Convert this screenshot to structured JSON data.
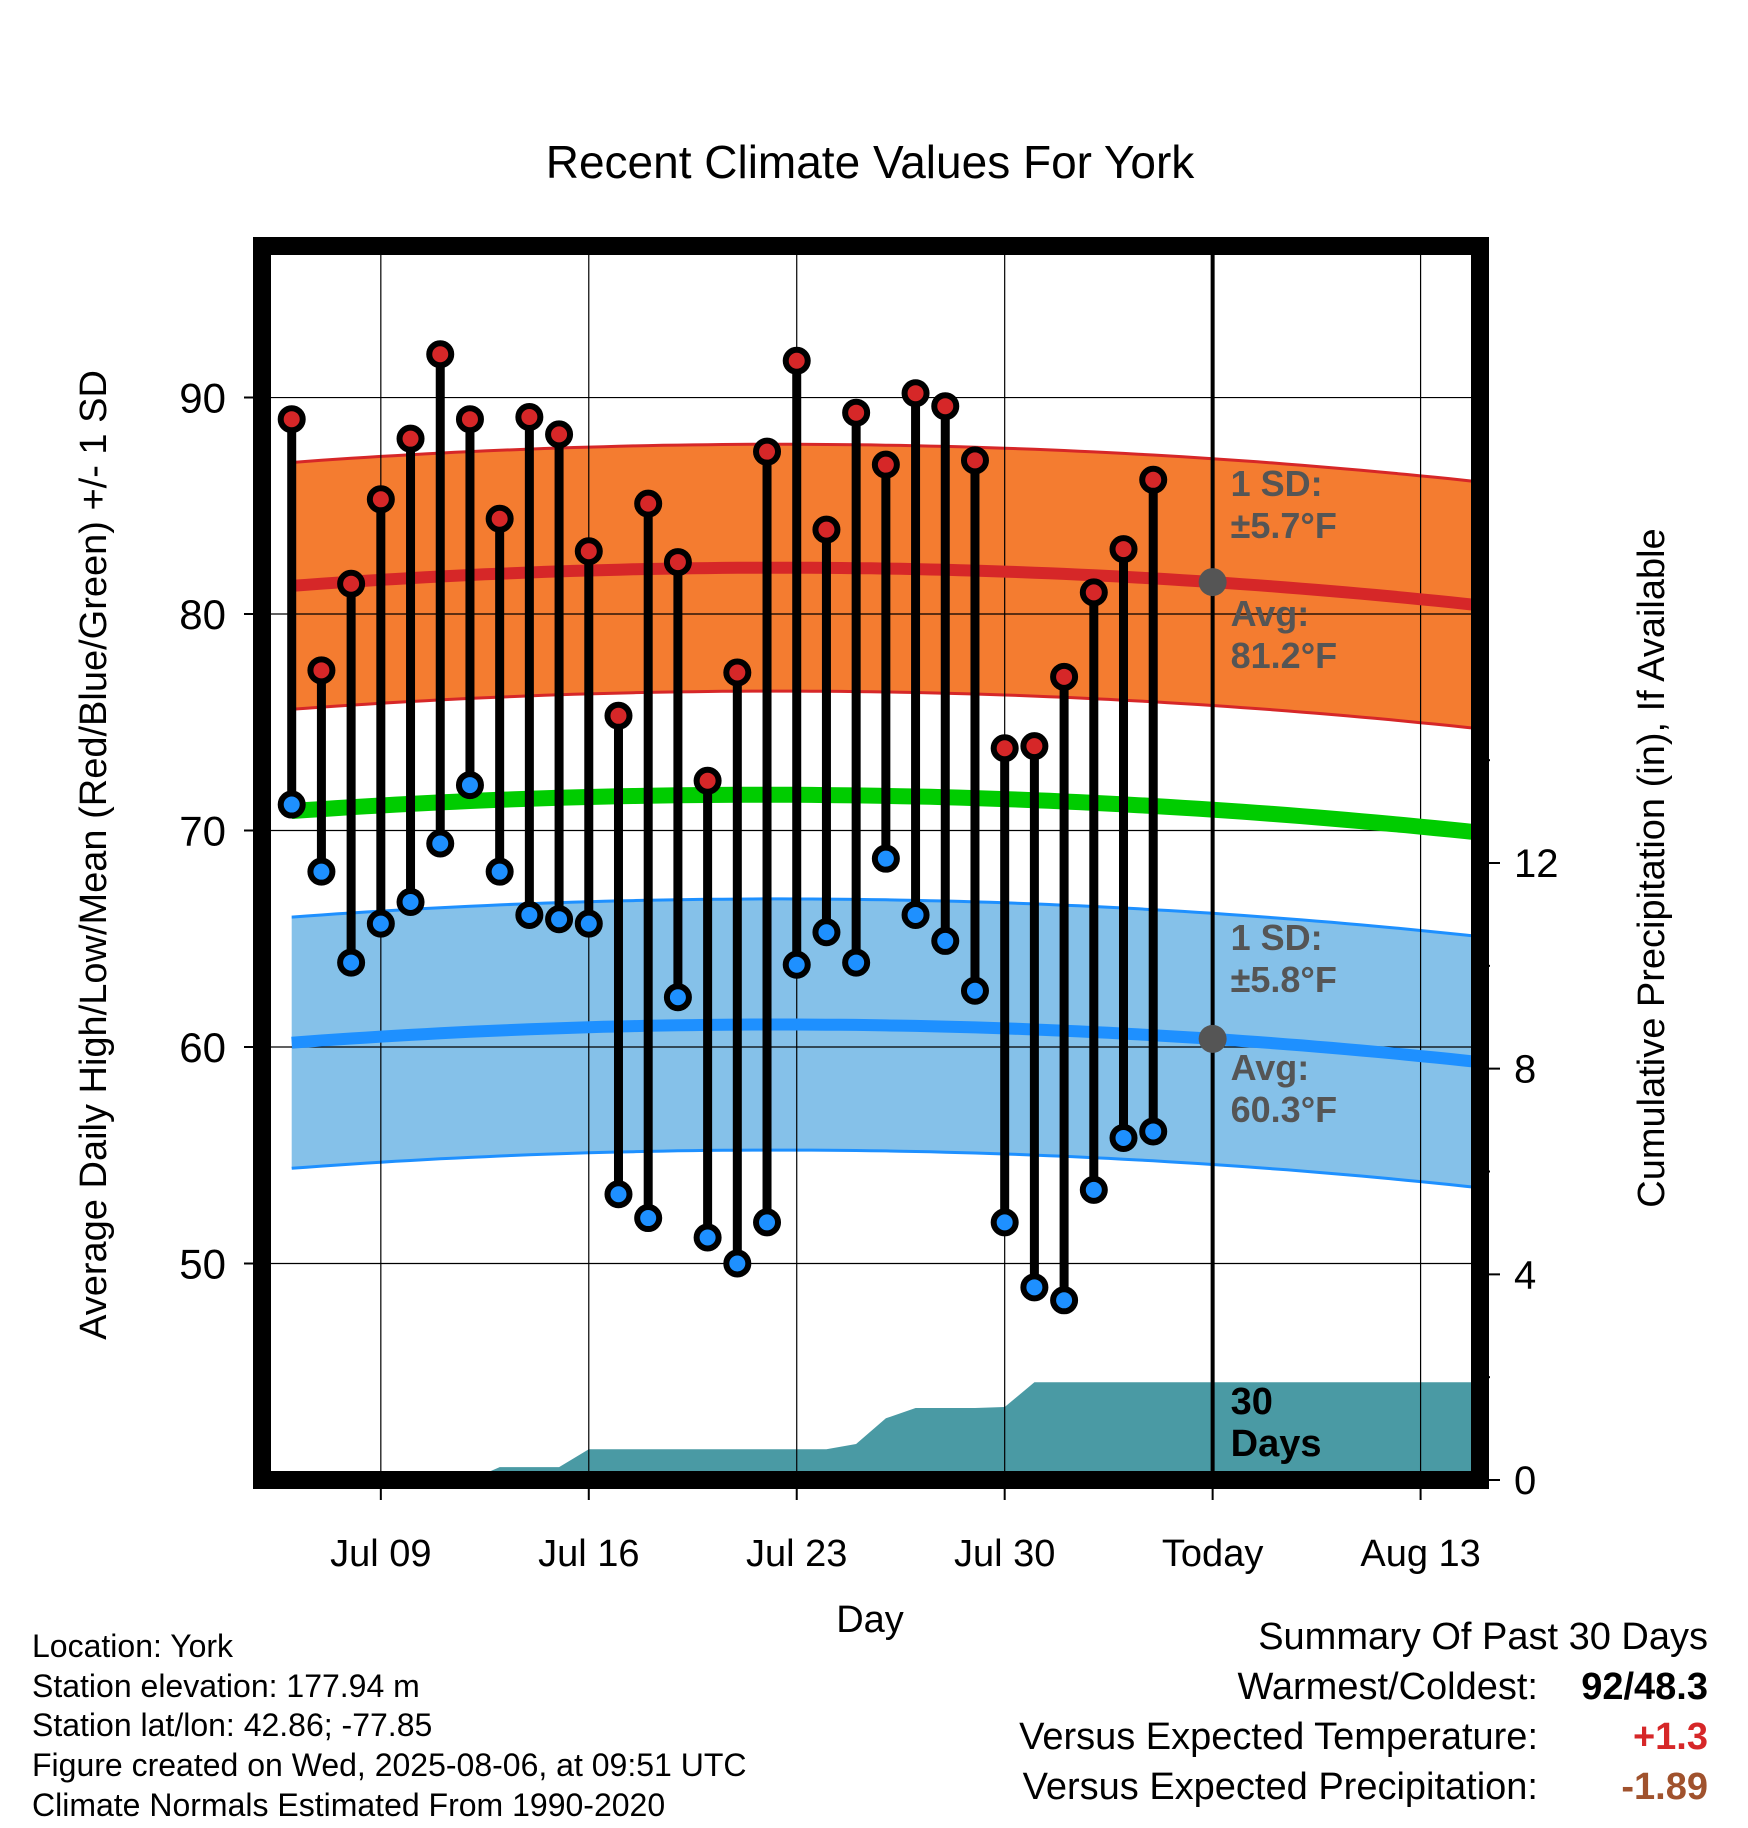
{
  "chart_data": {
    "type": "line",
    "title": "Recent Climate Values For York",
    "xlabel": "Day",
    "ylabel": "Average Daily High/Low/Mean (Red/Blue/Green) +/- 1 SD",
    "y2label": "Cumulative Precipitation (in), If Available",
    "ylim": [
      40,
      97
    ],
    "y2lim": [
      0,
      24
    ],
    "xlim": [
      "2025-07-05",
      "2025-08-15"
    ],
    "x_ticks": [
      {
        "date": "2025-07-09",
        "label": "Jul 09"
      },
      {
        "date": "2025-07-16",
        "label": "Jul 16"
      },
      {
        "date": "2025-07-23",
        "label": "Jul 23"
      },
      {
        "date": "2025-07-30",
        "label": "Jul 30"
      },
      {
        "date": "2025-08-06",
        "label": "Today"
      },
      {
        "date": "2025-08-13",
        "label": "Aug 13"
      }
    ],
    "y_ticks": [
      50,
      60,
      70,
      80,
      90
    ],
    "y2_ticks": [
      0,
      4,
      8,
      12
    ],
    "today": "2025-08-06",
    "grid": true,
    "series": [
      {
        "name": "Daily High",
        "color": "#d62728",
        "dates": [
          "2025-07-06",
          "2025-07-07",
          "2025-07-08",
          "2025-07-09",
          "2025-07-10",
          "2025-07-11",
          "2025-07-12",
          "2025-07-13",
          "2025-07-14",
          "2025-07-15",
          "2025-07-16",
          "2025-07-17",
          "2025-07-18",
          "2025-07-19",
          "2025-07-20",
          "2025-07-21",
          "2025-07-22",
          "2025-07-23",
          "2025-07-24",
          "2025-07-25",
          "2025-07-26",
          "2025-07-27",
          "2025-07-28",
          "2025-07-29",
          "2025-07-30",
          "2025-07-31",
          "2025-08-01",
          "2025-08-02",
          "2025-08-03",
          "2025-08-04",
          "2025-08-05"
        ],
        "values": [
          89.0,
          77.4,
          81.4,
          85.3,
          88.1,
          92.0,
          89.0,
          84.4,
          89.1,
          88.3,
          82.9,
          75.3,
          85.1,
          82.4,
          72.3,
          77.3,
          87.5,
          91.7,
          83.9,
          89.3,
          86.9,
          90.2,
          89.6,
          87.1,
          73.8,
          73.9,
          77.1,
          81.0,
          83.0,
          86.2,
          null
        ]
      },
      {
        "name": "Daily Low",
        "color": "#1e90ff",
        "dates": [
          "2025-07-06",
          "2025-07-07",
          "2025-07-08",
          "2025-07-09",
          "2025-07-10",
          "2025-07-11",
          "2025-07-12",
          "2025-07-13",
          "2025-07-14",
          "2025-07-15",
          "2025-07-16",
          "2025-07-17",
          "2025-07-18",
          "2025-07-19",
          "2025-07-20",
          "2025-07-21",
          "2025-07-22",
          "2025-07-23",
          "2025-07-24",
          "2025-07-25",
          "2025-07-26",
          "2025-07-27",
          "2025-07-28",
          "2025-07-29",
          "2025-07-30",
          "2025-07-31",
          "2025-08-01",
          "2025-08-02",
          "2025-08-03",
          "2025-08-04",
          "2025-08-05"
        ],
        "values": [
          71.2,
          68.1,
          63.9,
          65.7,
          66.7,
          69.4,
          72.1,
          68.1,
          66.1,
          65.9,
          65.7,
          53.2,
          52.1,
          62.3,
          51.2,
          50.0,
          51.9,
          63.8,
          65.3,
          63.9,
          68.7,
          66.1,
          64.9,
          62.6,
          51.9,
          48.9,
          48.3,
          53.4,
          55.8,
          56.1,
          null
        ]
      }
    ],
    "normals": {
      "high": {
        "color": "#d62728",
        "band_color": "#f47c30",
        "start": 81.3,
        "mid": 82.1,
        "end": 80.4
      },
      "low": {
        "color": "#1e90ff",
        "band_color": "#85c1e9",
        "start": 60.2,
        "mid": 61.0,
        "end": 59.3
      },
      "mean": {
        "color": "#00cc00",
        "start": 70.9,
        "mid": 71.6,
        "end": 69.9
      },
      "high_sd": 5.7,
      "low_sd": 5.8
    },
    "precip_cumulative": {
      "color": "#4a9aa4",
      "dates": [
        "2025-07-06",
        "2025-07-12",
        "2025-07-13",
        "2025-07-15",
        "2025-07-16",
        "2025-07-24",
        "2025-07-25",
        "2025-07-26",
        "2025-07-27",
        "2025-07-29",
        "2025-07-30",
        "2025-07-31",
        "2025-08-15"
      ],
      "values": [
        0.0,
        0.0,
        0.25,
        0.25,
        0.6,
        0.6,
        0.7,
        1.2,
        1.4,
        1.4,
        1.42,
        1.9,
        1.9
      ]
    },
    "annotations": {
      "high_sd": [
        "1 SD:",
        "±5.7°F"
      ],
      "high_avg": [
        "Avg:",
        "81.2°F"
      ],
      "low_sd": [
        "1 SD:",
        "±5.8°F"
      ],
      "low_avg": [
        "Avg:",
        "60.3°F"
      ],
      "days": [
        "30",
        "Days"
      ]
    }
  },
  "info": {
    "location": "Location: York",
    "elevation": "Station elevation: 177.94 m",
    "latlon": "Station lat/lon: 42.86; -77.85",
    "created": "Figure created on Wed, 2025-08-06, at 09:51 UTC",
    "normals": "Climate Normals Estimated From 1990-2020"
  },
  "summary": {
    "title": "Summary Of Past 30 Days",
    "warmest_label": "Warmest/Coldest:",
    "warmest_value": "92/48.3",
    "temp_label": "Versus Expected Temperature:",
    "temp_value": "+1.3",
    "temp_color": "#d62728",
    "precip_label": "Versus Expected Precipitation:",
    "precip_value": "-1.89",
    "precip_color": "#a0522d"
  }
}
